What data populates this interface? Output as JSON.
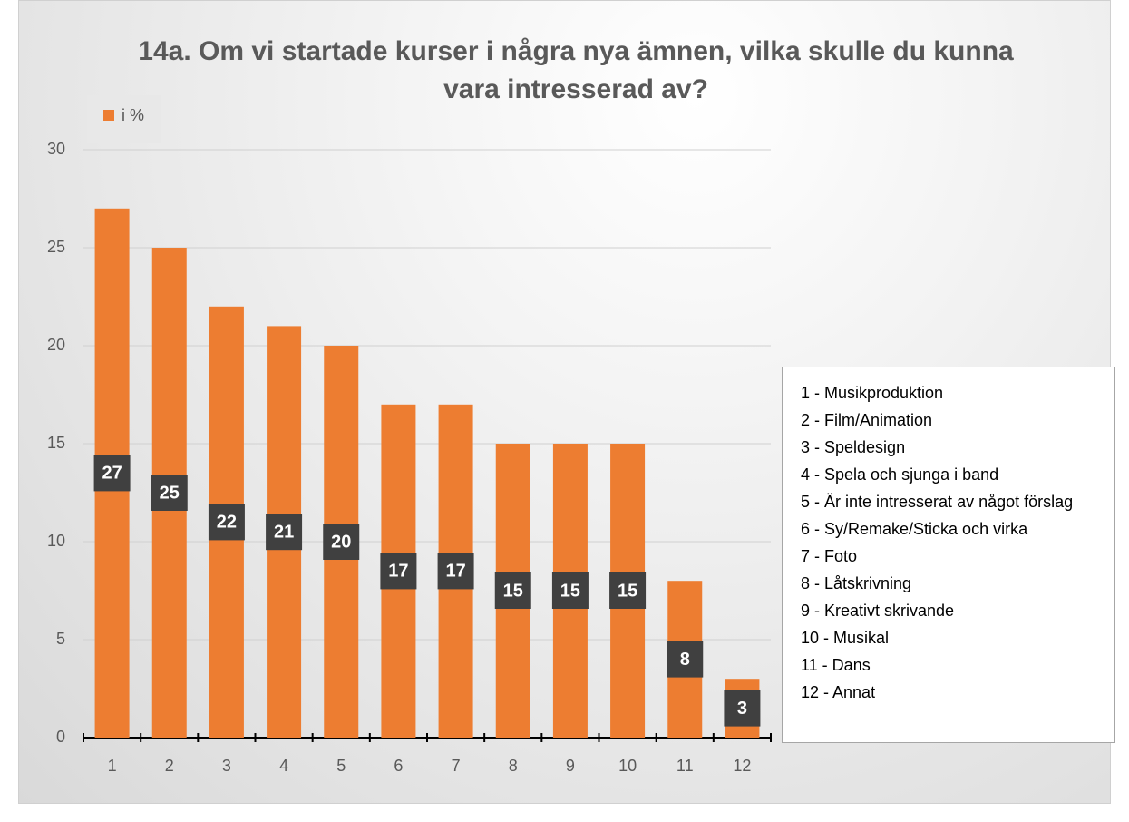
{
  "chart_data": {
    "type": "bar",
    "title": "14a. Om vi startade kurser i några nya ämnen, vilka skulle du kunna vara intresserad av?",
    "categories": [
      "1",
      "2",
      "3",
      "4",
      "5",
      "6",
      "7",
      "8",
      "9",
      "10",
      "11",
      "12"
    ],
    "series": [
      {
        "name": "i %",
        "color": "#ed7d31",
        "values": [
          27,
          25,
          22,
          21,
          20,
          17,
          17,
          15,
          15,
          15,
          8,
          3
        ]
      }
    ],
    "ylim": [
      0,
      30
    ],
    "yticks": [
      0,
      5,
      10,
      15,
      20,
      25,
      30
    ],
    "grid": true,
    "legend": "top-left",
    "annotation": [
      "1 - Musikproduktion",
      "2 - Film/Animation",
      "3 - Speldesign",
      "4 - Spela och sjunga i band",
      "5 - Är inte intresserat av något förslag",
      "6 - Sy/Remake/Sticka och virka",
      "7 - Foto",
      "8 - Låtskrivning",
      "9 - Kreativt skrivande",
      "10 - Musikal",
      "11 - Dans",
      "12 - Annat"
    ]
  }
}
